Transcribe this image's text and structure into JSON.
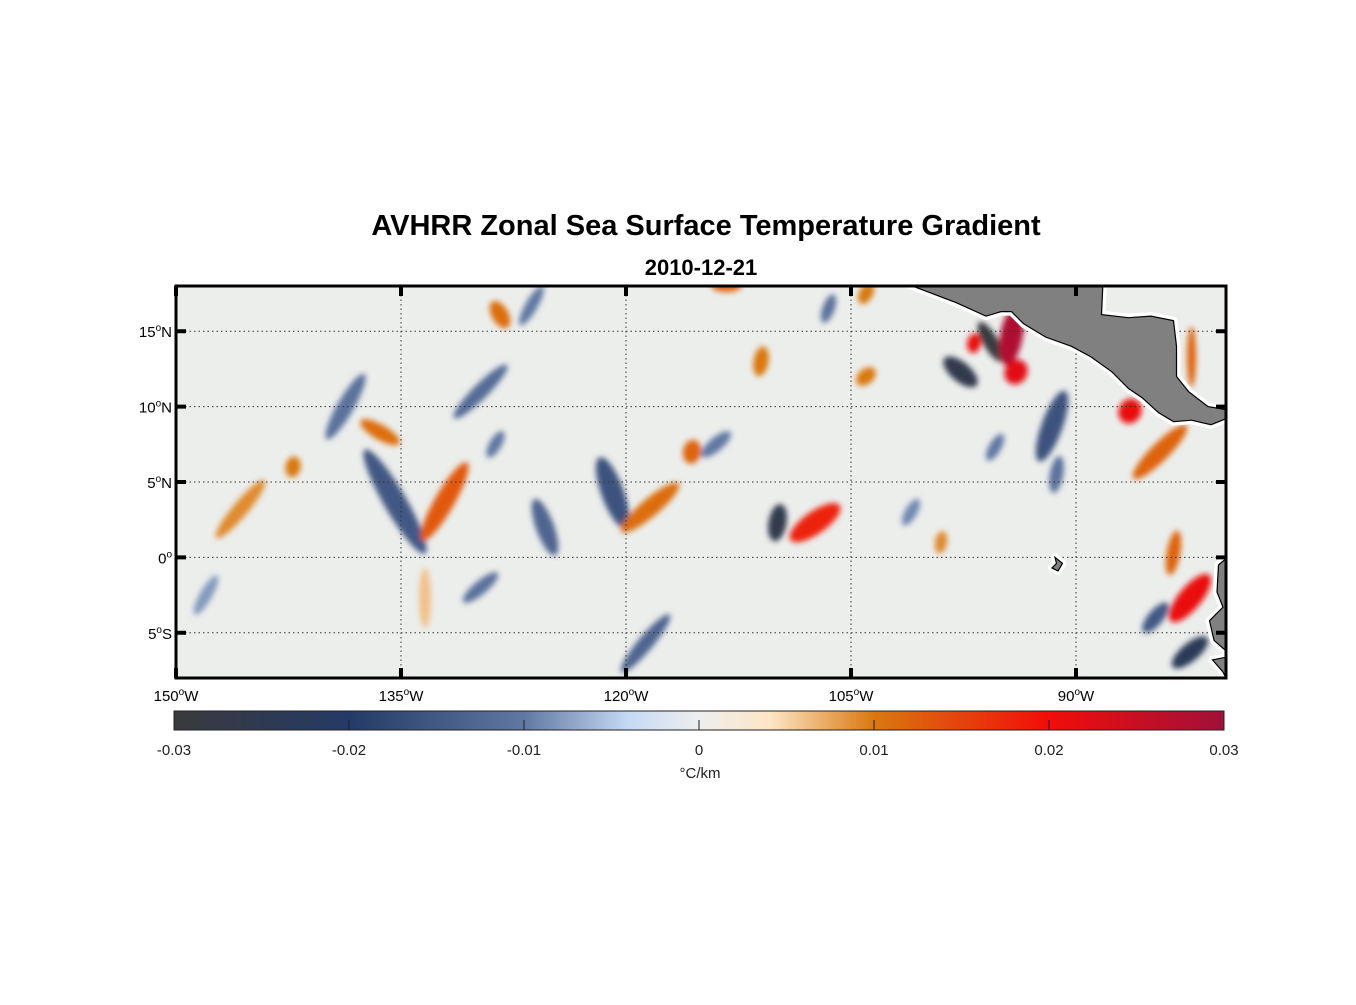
{
  "chart_data": {
    "type": "heatmap",
    "title": "AVHRR Zonal Sea Surface Temperature Gradient",
    "subtitle": "2010-12-21",
    "lon_range": [
      -150,
      -80
    ],
    "lat_range": [
      -8,
      18
    ],
    "grid": true,
    "x_ticks": [
      {
        "value": -150,
        "label": "150",
        "suffix": "W"
      },
      {
        "value": -135,
        "label": "135",
        "suffix": "W"
      },
      {
        "value": -120,
        "label": "120",
        "suffix": "W"
      },
      {
        "value": -105,
        "label": "105",
        "suffix": "W"
      },
      {
        "value": -90,
        "label": "90",
        "suffix": "W"
      }
    ],
    "y_ticks": [
      {
        "value": 15,
        "label": "15",
        "suffix": "N"
      },
      {
        "value": 10,
        "label": "10",
        "suffix": "N"
      },
      {
        "value": 5,
        "label": "5",
        "suffix": "N"
      },
      {
        "value": 0,
        "label": "0",
        "suffix": ""
      },
      {
        "value": -5,
        "label": "5",
        "suffix": "S"
      }
    ],
    "colorbar": {
      "range": [
        -0.03,
        0.03
      ],
      "ticks": [
        {
          "value": -0.03,
          "label": "-0.03"
        },
        {
          "value": -0.02,
          "label": "-0.02"
        },
        {
          "value": -0.01,
          "label": "-0.01"
        },
        {
          "value": 0,
          "label": "0"
        },
        {
          "value": 0.01,
          "label": "0.01"
        },
        {
          "value": 0.02,
          "label": "0.02"
        },
        {
          "value": 0.03,
          "label": "0.03"
        }
      ],
      "label": "°C/km",
      "colormap": [
        {
          "v": -0.03,
          "c": "#3a3a3c"
        },
        {
          "v": -0.02,
          "c": "#243a66"
        },
        {
          "v": -0.01,
          "c": "#6178a2"
        },
        {
          "v": -0.004,
          "c": "#c5daf4"
        },
        {
          "v": 0,
          "c": "#eeeeee"
        },
        {
          "v": 0.004,
          "c": "#fde6c6"
        },
        {
          "v": 0.01,
          "c": "#d9780f"
        },
        {
          "v": 0.02,
          "c": "#f20d0a"
        },
        {
          "v": 0.03,
          "c": "#a0103a"
        }
      ]
    },
    "ocean_color": "#eceeec",
    "land_color": "#808080",
    "features": [
      {
        "lon": -145.7,
        "lat": 3.2,
        "len": 5,
        "w": 1,
        "ang": 50,
        "v": 0.009
      },
      {
        "lon": -142.2,
        "lat": 6,
        "len": 1.4,
        "w": 1,
        "ang": 80,
        "v": 0.01
      },
      {
        "lon": -138.7,
        "lat": 10,
        "len": 5,
        "w": 1.1,
        "ang": 60,
        "v": -0.011
      },
      {
        "lon": -136.4,
        "lat": 8.3,
        "len": 3,
        "w": 1,
        "ang": -30,
        "v": 0.011
      },
      {
        "lon": -135.4,
        "lat": 3.7,
        "len": 8,
        "w": 1.5,
        "ang": -60,
        "v": -0.015
      },
      {
        "lon": -132.1,
        "lat": 3.7,
        "len": 6,
        "w": 1.3,
        "ang": 60,
        "v": 0.013
      },
      {
        "lon": -129.7,
        "lat": 11,
        "len": 5,
        "w": 1,
        "ang": 45,
        "v": -0.012
      },
      {
        "lon": -128.4,
        "lat": 16.1,
        "len": 2,
        "w": 1.1,
        "ang": -60,
        "v": 0.011
      },
      {
        "lon": -126.3,
        "lat": 16.7,
        "len": 3,
        "w": 0.8,
        "ang": 60,
        "v": -0.01
      },
      {
        "lon": -128.7,
        "lat": 7.5,
        "len": 2,
        "w": 0.8,
        "ang": 60,
        "v": -0.01
      },
      {
        "lon": -125.4,
        "lat": 2,
        "len": 4,
        "w": 1.2,
        "ang": -70,
        "v": -0.013
      },
      {
        "lon": -120.9,
        "lat": 4.3,
        "len": 5,
        "w": 1.5,
        "ang": -70,
        "v": -0.016
      },
      {
        "lon": -118.4,
        "lat": 3.3,
        "len": 5,
        "w": 1.2,
        "ang": 40,
        "v": 0.011
      },
      {
        "lon": -115.6,
        "lat": 7,
        "len": 1.6,
        "w": 1.2,
        "ang": 80,
        "v": 0.012
      },
      {
        "lon": -114,
        "lat": 7.5,
        "len": 2.5,
        "w": 0.9,
        "ang": 40,
        "v": -0.01
      },
      {
        "lon": -111,
        "lat": 13,
        "len": 2,
        "w": 1,
        "ang": 80,
        "v": 0.01
      },
      {
        "lon": -113.3,
        "lat": 18,
        "len": 2,
        "w": 0.8,
        "ang": 0,
        "v": 0.012
      },
      {
        "lon": -109.9,
        "lat": 2.3,
        "len": 2.5,
        "w": 1.2,
        "ang": 80,
        "v": -0.026
      },
      {
        "lon": -107.4,
        "lat": 2.3,
        "len": 4,
        "w": 1.5,
        "ang": 35,
        "v": 0.018
      },
      {
        "lon": -118.7,
        "lat": -5.7,
        "len": 5,
        "w": 1,
        "ang": 50,
        "v": -0.013
      },
      {
        "lon": -129.7,
        "lat": -2,
        "len": 3,
        "w": 0.9,
        "ang": 40,
        "v": -0.011
      },
      {
        "lon": -133.4,
        "lat": -2.7,
        "len": 4,
        "w": 0.8,
        "ang": 90,
        "v": 0.006
      },
      {
        "lon": -148,
        "lat": -2.5,
        "len": 3,
        "w": 0.8,
        "ang": 60,
        "v": -0.008
      },
      {
        "lon": -104,
        "lat": 12,
        "len": 1.5,
        "w": 1,
        "ang": 40,
        "v": 0.01
      },
      {
        "lon": -106.5,
        "lat": 16.5,
        "len": 2,
        "w": 0.8,
        "ang": 70,
        "v": -0.011
      },
      {
        "lon": -104,
        "lat": 17.5,
        "len": 1.5,
        "w": 0.9,
        "ang": 60,
        "v": 0.01
      },
      {
        "lon": -97.7,
        "lat": 12.3,
        "len": 2.8,
        "w": 1.3,
        "ang": -40,
        "v": -0.026
      },
      {
        "lon": -95.7,
        "lat": 14.3,
        "len": 3,
        "w": 1,
        "ang": -60,
        "v": -0.029
      },
      {
        "lon": -96.8,
        "lat": 14.2,
        "len": 1.3,
        "w": 0.9,
        "ang": 80,
        "v": 0.021
      },
      {
        "lon": -94.3,
        "lat": 14.7,
        "len": 4,
        "w": 1.5,
        "ang": 80,
        "v": 0.028
      },
      {
        "lon": -94,
        "lat": 12.3,
        "len": 1.7,
        "w": 1.5,
        "ang": 60,
        "v": 0.022
      },
      {
        "lon": -91.6,
        "lat": 8.7,
        "len": 5,
        "w": 1.4,
        "ang": 70,
        "v": -0.016
      },
      {
        "lon": -91.3,
        "lat": 5.5,
        "len": 2.5,
        "w": 0.9,
        "ang": 80,
        "v": -0.011
      },
      {
        "lon": -95.4,
        "lat": 7.3,
        "len": 2,
        "w": 0.8,
        "ang": 60,
        "v": -0.01
      },
      {
        "lon": -86.4,
        "lat": 9.7,
        "len": 1.7,
        "w": 1.5,
        "ang": 60,
        "v": 0.021
      },
      {
        "lon": -84.4,
        "lat": 7,
        "len": 5,
        "w": 1.2,
        "ang": 45,
        "v": 0.012
      },
      {
        "lon": -82.3,
        "lat": 13.3,
        "len": 4,
        "w": 0.6,
        "ang": 90,
        "v": 0.012
      },
      {
        "lon": -83.5,
        "lat": 0.3,
        "len": 3,
        "w": 0.9,
        "ang": 80,
        "v": 0.012
      },
      {
        "lon": -82.4,
        "lat": -2.7,
        "len": 4,
        "w": 1.5,
        "ang": 50,
        "v": 0.021
      },
      {
        "lon": -84.7,
        "lat": -4,
        "len": 2.5,
        "w": 1,
        "ang": 50,
        "v": -0.015
      },
      {
        "lon": -82.4,
        "lat": -6.3,
        "len": 3,
        "w": 1.2,
        "ang": 40,
        "v": -0.023
      },
      {
        "lon": -99,
        "lat": 1,
        "len": 1.5,
        "w": 0.8,
        "ang": 80,
        "v": 0.009
      },
      {
        "lon": -101,
        "lat": 3,
        "len": 2,
        "w": 0.8,
        "ang": 60,
        "v": -0.009
      }
    ],
    "land": [
      [
        [
          -101.7,
          18.3
        ],
        [
          -98,
          16.9
        ],
        [
          -96,
          16
        ],
        [
          -95,
          16.3
        ],
        [
          -94.3,
          16.3
        ],
        [
          -93.5,
          15.5
        ],
        [
          -92,
          14.6
        ],
        [
          -90.3,
          14
        ],
        [
          -89,
          13.3
        ],
        [
          -87.6,
          12.3
        ],
        [
          -86.5,
          11.2
        ],
        [
          -85.6,
          10.6
        ],
        [
          -84.5,
          9.6
        ],
        [
          -83.5,
          9
        ],
        [
          -82.3,
          9.1
        ],
        [
          -81,
          8.8
        ],
        [
          -80,
          9.2
        ],
        [
          -80,
          9.8
        ],
        [
          -81.2,
          10
        ],
        [
          -82.5,
          11
        ],
        [
          -83.3,
          12
        ],
        [
          -83.3,
          14
        ],
        [
          -83.5,
          15.7
        ],
        [
          -85,
          16
        ],
        [
          -86.5,
          15.9
        ],
        [
          -88.3,
          16.1
        ],
        [
          -88.2,
          18.3
        ]
      ],
      [
        [
          -79.9,
          0
        ],
        [
          -80.5,
          -0.5
        ],
        [
          -80.6,
          -2.3
        ],
        [
          -80.2,
          -3.3
        ],
        [
          -81.1,
          -4.2
        ],
        [
          -80.8,
          -5.5
        ],
        [
          -80,
          -6.2
        ],
        [
          -79.9,
          -6.2
        ]
      ],
      [
        [
          -80.9,
          -6.8
        ],
        [
          -80.2,
          -7.6
        ],
        [
          -79.9,
          -8.2
        ],
        [
          -79.9,
          -6.6
        ]
      ],
      [
        [
          -91.4,
          -0.0
        ],
        [
          -90.9,
          -0.4
        ],
        [
          -91.2,
          -0.9
        ],
        [
          -91.6,
          -0.7
        ],
        [
          -91.3,
          -0.4
        ]
      ]
    ]
  }
}
